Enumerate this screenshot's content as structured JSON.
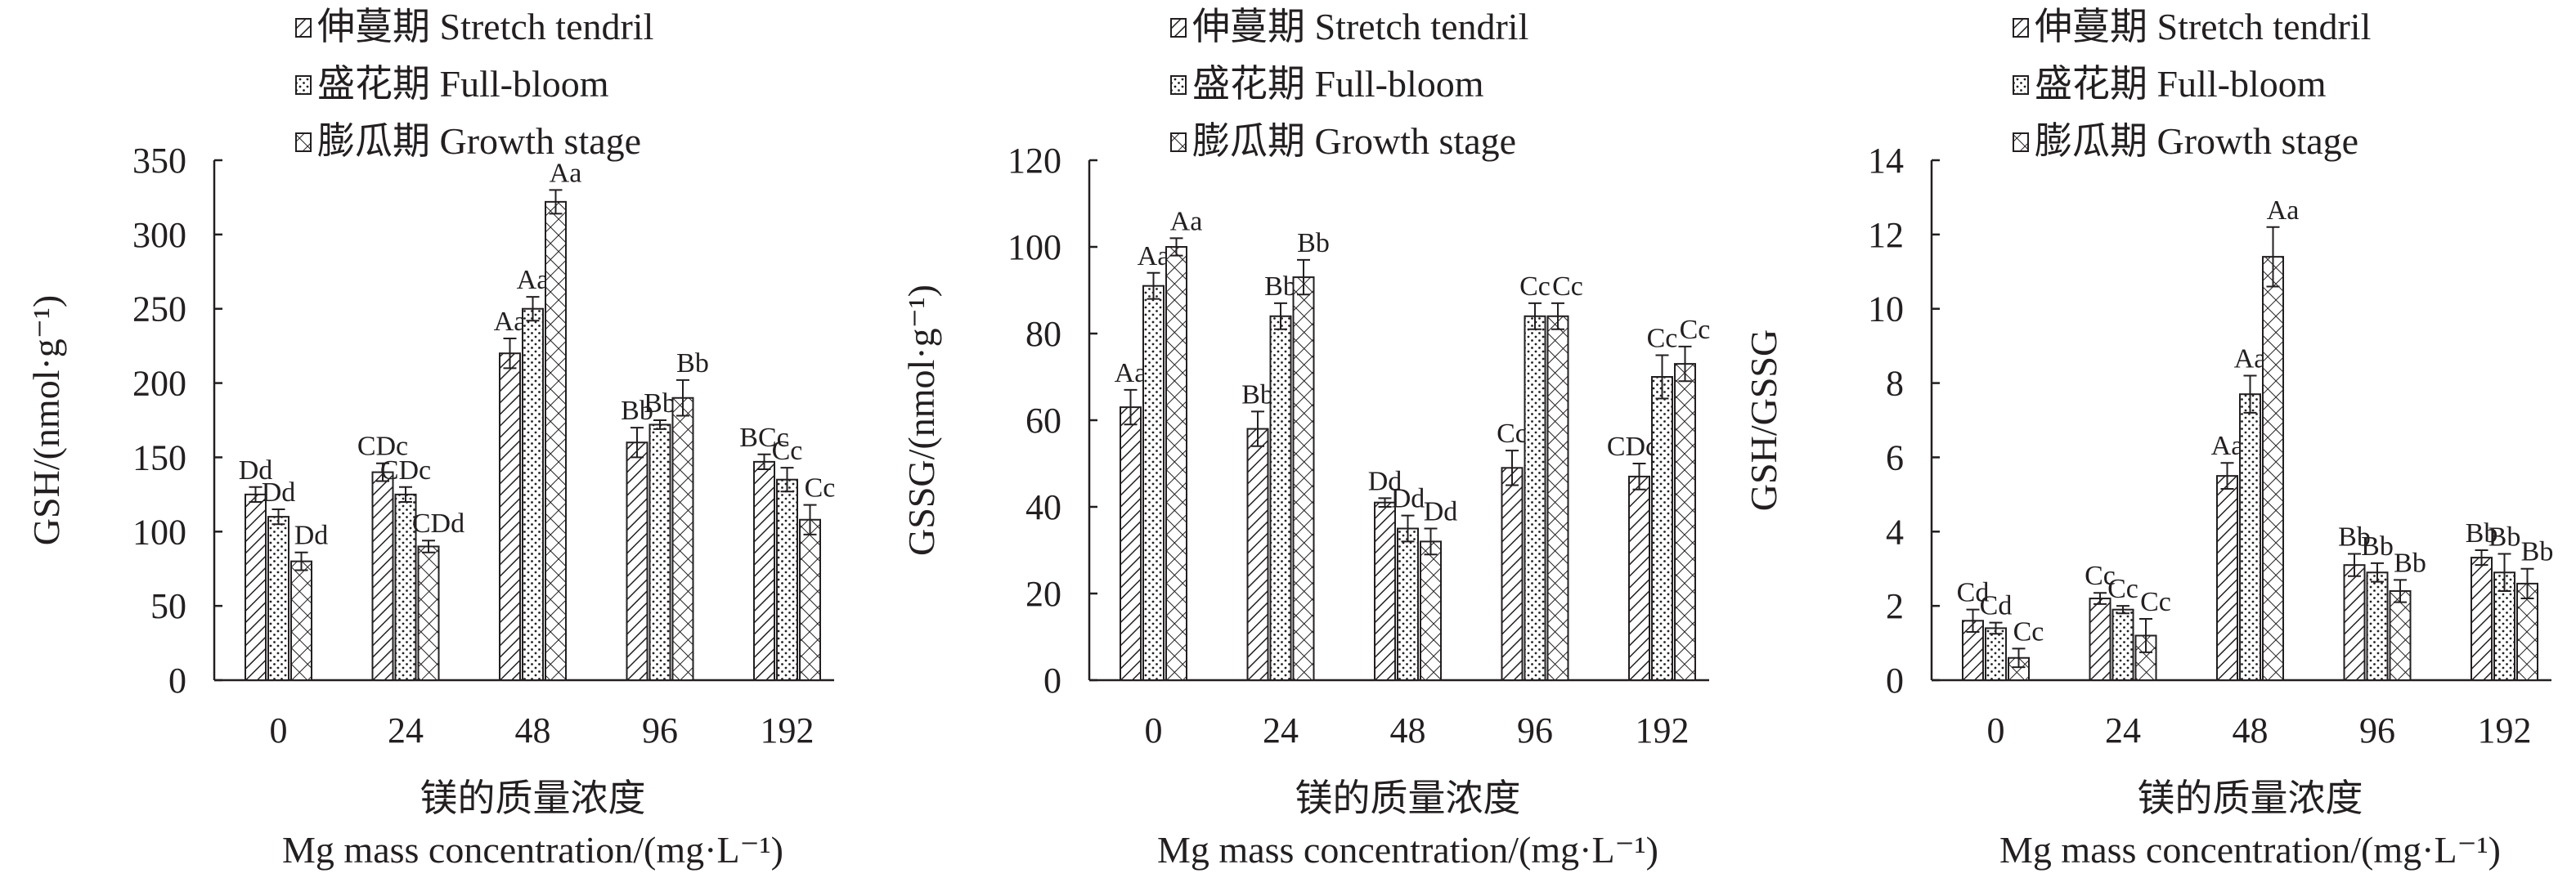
{
  "chart_data": [
    {
      "type": "bar",
      "categories": [
        "0",
        "24",
        "48",
        "96",
        "192"
      ],
      "xlabel_cn": "镁的质量浓度",
      "xlabel_en": "Mg mass concentration/(mg·L⁻¹)",
      "ylabel": "GSH/(nmol·g⁻¹)",
      "ylim": [
        0,
        350
      ],
      "yticks": [
        "0",
        "50",
        "100",
        "150",
        "200",
        "250",
        "300",
        "350"
      ],
      "legend_position": "top",
      "series": [
        {
          "name": "伸蔓期 Stretch tendril",
          "pattern": "diagonal",
          "values": [
            125,
            140,
            220,
            160,
            147
          ],
          "errors": [
            5,
            6,
            10,
            10,
            5
          ],
          "labels": [
            "Dd",
            "CDc",
            "Aa",
            "Bb",
            "BCc"
          ]
        },
        {
          "name": "盛花期 Full-bloom",
          "pattern": "dots",
          "values": [
            110,
            125,
            250,
            172,
            135
          ],
          "errors": [
            5,
            5,
            8,
            3,
            8
          ],
          "labels": [
            "Dd",
            "CDc",
            "Aa",
            "Bb",
            "Cc"
          ]
        },
        {
          "name": "膨瓜期 Growth stage",
          "pattern": "crosshatch",
          "values": [
            80,
            90,
            322,
            190,
            108
          ],
          "errors": [
            6,
            4,
            8,
            12,
            10
          ],
          "labels": [
            "Dd",
            "CDd",
            "Aa",
            "Bb",
            "Cc"
          ]
        }
      ]
    },
    {
      "type": "bar",
      "categories": [
        "0",
        "24",
        "48",
        "96",
        "192"
      ],
      "xlabel_cn": "镁的质量浓度",
      "xlabel_en": "Mg mass concentration/(mg·L⁻¹)",
      "ylabel": "GSSG/(nmol·g⁻¹)",
      "ylim": [
        0,
        120
      ],
      "yticks": [
        "0",
        "20",
        "40",
        "60",
        "80",
        "100",
        "120"
      ],
      "legend_position": "top",
      "series": [
        {
          "name": "伸蔓期 Stretch tendril",
          "pattern": "diagonal",
          "values": [
            63,
            58,
            41,
            49,
            47
          ],
          "errors": [
            4,
            4,
            1,
            4,
            3
          ],
          "labels": [
            "Aa",
            "Bb",
            "Dd",
            "Cc",
            "CDcd"
          ]
        },
        {
          "name": "盛花期 Full-bloom",
          "pattern": "dots",
          "values": [
            91,
            84,
            35,
            84,
            70
          ],
          "errors": [
            3,
            3,
            3,
            3,
            5
          ],
          "labels": [
            "Aa",
            "Bb",
            "Dd",
            "Cc",
            "Cc"
          ]
        },
        {
          "name": "膨瓜期 Growth stage",
          "pattern": "crosshatch",
          "values": [
            100,
            93,
            32,
            84,
            73
          ],
          "errors": [
            2,
            4,
            3,
            3,
            4
          ],
          "labels": [
            "Aa",
            "Bb",
            "Dd",
            "Cc",
            "Cc"
          ]
        }
      ]
    },
    {
      "type": "bar",
      "categories": [
        "0",
        "24",
        "48",
        "96",
        "192"
      ],
      "xlabel_cn": "镁的质量浓度",
      "xlabel_en": "Mg mass concentration/(mg·L⁻¹)",
      "ylabel": "GSH/GSSG",
      "ylim": [
        0,
        14
      ],
      "yticks": [
        "0",
        "2",
        "4",
        "6",
        "8",
        "10",
        "12",
        "14"
      ],
      "legend_position": "top",
      "series": [
        {
          "name": "伸蔓期 Stretch tendril",
          "pattern": "diagonal",
          "values": [
            1.6,
            2.2,
            5.5,
            3.1,
            3.3
          ],
          "errors": [
            0.3,
            0.15,
            0.35,
            0.3,
            0.2
          ],
          "labels": [
            "Cd",
            "Cc",
            "Aa",
            "Bb",
            "Bb"
          ]
        },
        {
          "name": "盛花期 Full-bloom",
          "pattern": "dots",
          "values": [
            1.4,
            1.9,
            7.7,
            2.9,
            2.9
          ],
          "errors": [
            0.15,
            0.1,
            0.5,
            0.25,
            0.5
          ],
          "labels": [
            "Cd",
            "Cc",
            "Aa",
            "Bb",
            "Bb"
          ]
        },
        {
          "name": "膨瓜期 Growth stage",
          "pattern": "crosshatch",
          "values": [
            0.6,
            1.2,
            11.4,
            2.4,
            2.6
          ],
          "errors": [
            0.25,
            0.45,
            0.8,
            0.3,
            0.4
          ],
          "labels": [
            "Cc",
            "Cc",
            "Aa",
            "Bb",
            "Bb"
          ]
        }
      ]
    }
  ]
}
